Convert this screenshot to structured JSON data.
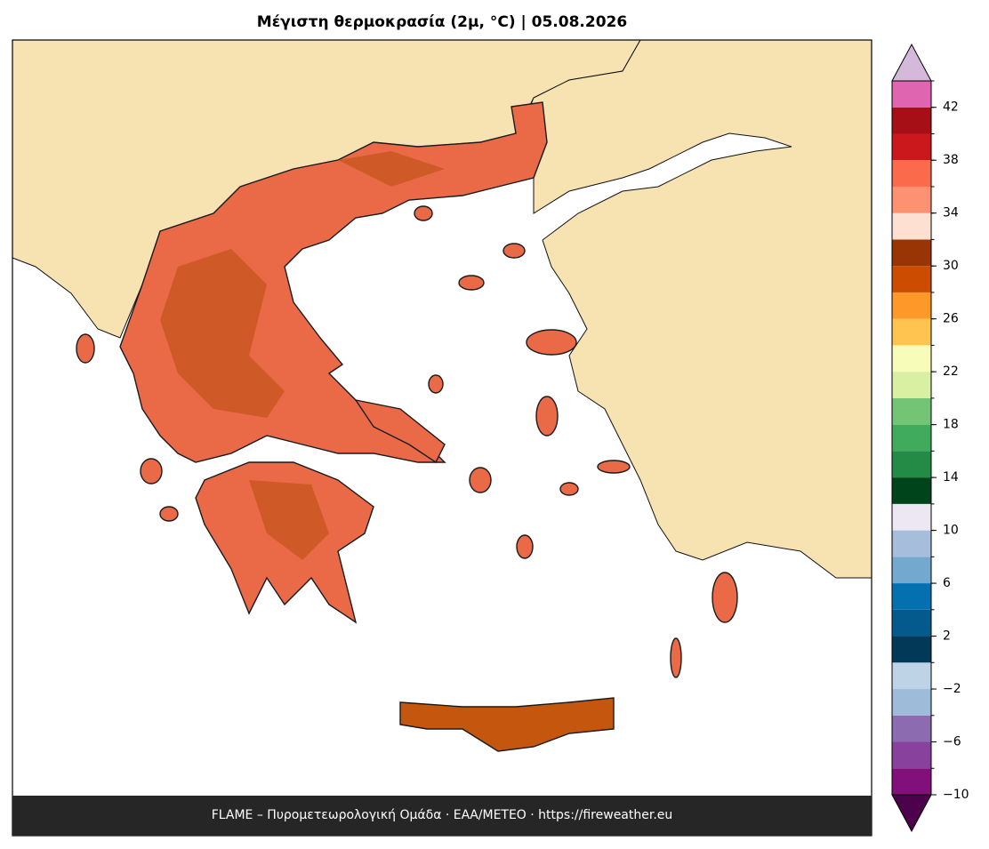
{
  "title": "Μέγιστη θερμοκρασία (2μ, °C)  |  05.08.2026",
  "footer": "FLAME – Πυρομετεωρολογική Ομάδα · ΕΑΑ/METEO · https://fireweather.eu",
  "colorbar": {
    "bounds": [
      -10,
      -8,
      -6,
      -4,
      -2,
      0,
      2,
      4,
      6,
      8,
      10,
      12,
      14,
      16,
      18,
      20,
      22,
      24,
      26,
      28,
      30,
      32,
      34,
      36,
      38,
      40,
      42,
      44
    ],
    "colors": [
      "#810f7c",
      "#88419d",
      "#8c6bb1",
      "#9ebcda",
      "#bfd3e6",
      "#023858",
      "#045a8d",
      "#0570b0",
      "#74a9cf",
      "#a6bddb",
      "#ece7f2",
      "#00441b",
      "#238b45",
      "#41ab5d",
      "#74c476",
      "#d9f0a3",
      "#f7fcb9",
      "#fec44f",
      "#fe9929",
      "#cc4c02",
      "#993404",
      "#fee0d2",
      "#fc9272",
      "#fb6a4a",
      "#cb181d",
      "#a50f15",
      "#df65b0"
    ],
    "under_color": "#4d004b",
    "over_color": "#d4b9da",
    "ticks": [
      {
        "value": -10,
        "label": "−10"
      },
      {
        "value": -6,
        "label": "−6"
      },
      {
        "value": -2,
        "label": "−2"
      },
      2,
      6,
      10,
      14,
      18,
      22,
      26,
      30,
      34,
      38,
      42
    ]
  }
}
